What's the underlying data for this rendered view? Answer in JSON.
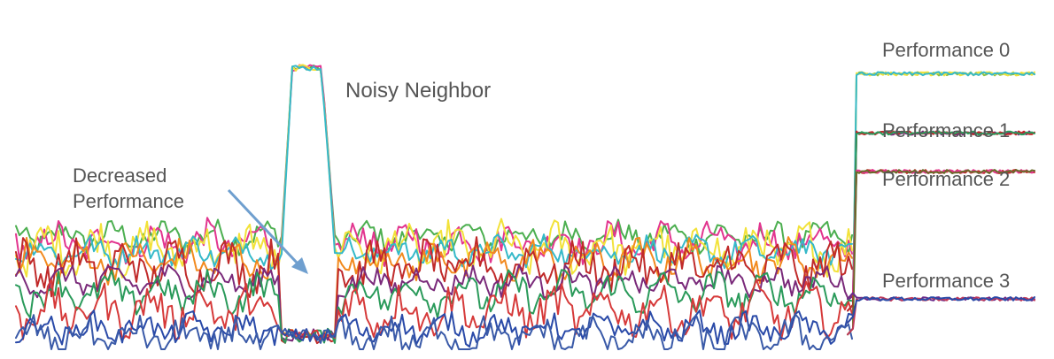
{
  "chart_data": {
    "type": "line",
    "title": "",
    "xlabel": "",
    "ylabel": "",
    "grid": false,
    "legend": "none",
    "annotations": {
      "noisy_neighbor": "Noisy Neighbor",
      "decreased_performance_line1": "Decreased",
      "decreased_performance_line2": "Performance",
      "performance_0": "Performance 0",
      "performance_1": "Performance 1",
      "performance_2": "Performance 2",
      "performance_3": "Performance 3"
    },
    "arrow_color": "#6f9fcf",
    "tiers": [
      {
        "label": "Performance 0",
        "level": 0.93,
        "colors": [
          "#8fbf3f",
          "#f2e23a",
          "#35b9c9"
        ]
      },
      {
        "label": "Performance 1",
        "level": 0.73,
        "colors": [
          "#7a2a7a",
          "#c02a2a",
          "#2a9a5a"
        ]
      },
      {
        "label": "Performance 2",
        "level": 0.6,
        "colors": [
          "#c02a2a",
          "#e2358f",
          "#6a6a2a"
        ]
      },
      {
        "label": "Performance 3",
        "level": 0.17,
        "colors": [
          "#6a2a8a",
          "#c03a5a",
          "#2a4aa8"
        ]
      }
    ],
    "series": [
      {
        "color": "#4caf50",
        "base": 0.38
      },
      {
        "color": "#e2358f",
        "base": 0.36
      },
      {
        "color": "#f2e23a",
        "base": 0.34
      },
      {
        "color": "#35b9c9",
        "base": 0.33
      },
      {
        "color": "#f28a1e",
        "base": 0.3
      },
      {
        "color": "#c02a2a",
        "base": 0.28
      },
      {
        "color": "#7a2a7a",
        "base": 0.23
      },
      {
        "color": "#2a9a5a",
        "base": 0.19
      },
      {
        "color": "#d63a3a",
        "base": 0.13
      },
      {
        "color": "#2a4aa8",
        "base": 0.07
      },
      {
        "color": "#3a5aa8",
        "base": 0.04
      }
    ]
  }
}
